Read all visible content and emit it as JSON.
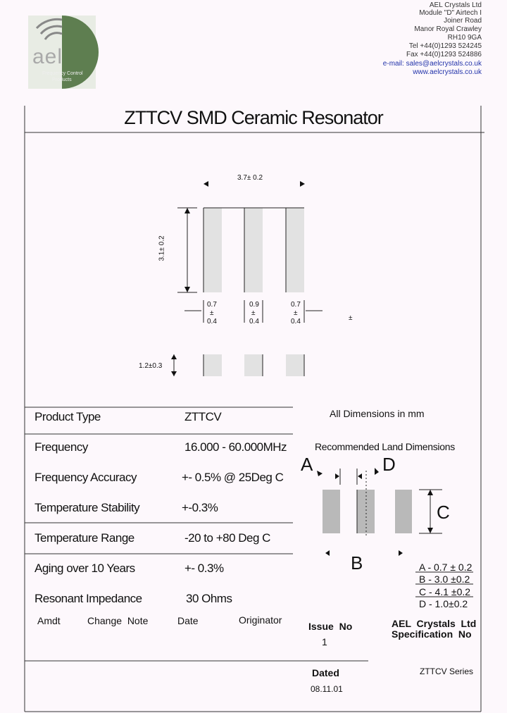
{
  "header": {
    "address": [
      "AEL Crystals Ltd",
      "Module \"D\" Airtech I",
      "Joiner Road",
      "Manor Royal Crawley",
      "RH10 9GA",
      "Tel +44(0)1293 524245",
      "Fax +44(0)1293 524886",
      "e-mail: sales@aelcrystals.co.uk",
      "www.aelcrystals.co.uk"
    ],
    "logo": {
      "name": "ael",
      "tagline": [
        "Frequency Control",
        "Products"
      ]
    }
  },
  "title": "ZTTCV SMD Ceramic Resonator",
  "drawing": {
    "width": "3.7± 0.2",
    "height": "3.1± 0.2",
    "pads": [
      [
        "0.7",
        "±",
        "0.4"
      ],
      [
        "0.9",
        "±",
        "0.4"
      ],
      [
        "0.7",
        "±",
        "0.4"
      ]
    ],
    "stray": "±",
    "thickness": "1.2±0.3"
  },
  "table": {
    "rows": [
      [
        "Product Type",
        "ZTTCV"
      ],
      [
        "Frequency",
        "16.000 - 60.000MHz"
      ],
      [
        "Frequency Accuracy",
        "+- 0.5% @ 25Deg C"
      ],
      [
        "Temperature Stability",
        "+-0.3%"
      ],
      [
        "Temperature Range",
        "-20 to +80 Deg C"
      ],
      [
        "Aging over 10 Years",
        "+- 0.3%"
      ],
      [
        "Resonant Impedance",
        "30 Ohms"
      ]
    ]
  },
  "land": {
    "note": "All Dimensions in mm",
    "title": "Recommended Land Dimensions",
    "letters": [
      "A",
      "B",
      "C",
      "D"
    ],
    "legend": [
      "A - 0.7 ± 0.2",
      "B - 3.0 ±0.2",
      "C - 4.1 ±0.2",
      "D - 1.0±0.2"
    ]
  },
  "footer": {
    "columns": [
      "Amdt",
      "Change  Note",
      "Date",
      "Originator"
    ],
    "issue_label": "Issue  No",
    "issue": "1",
    "company": "AEL  Crystals  Ltd",
    "spec_label": "Specification  No",
    "dated_label": "Dated",
    "dated": "08.11.01",
    "series": "ZTTCV Series"
  }
}
